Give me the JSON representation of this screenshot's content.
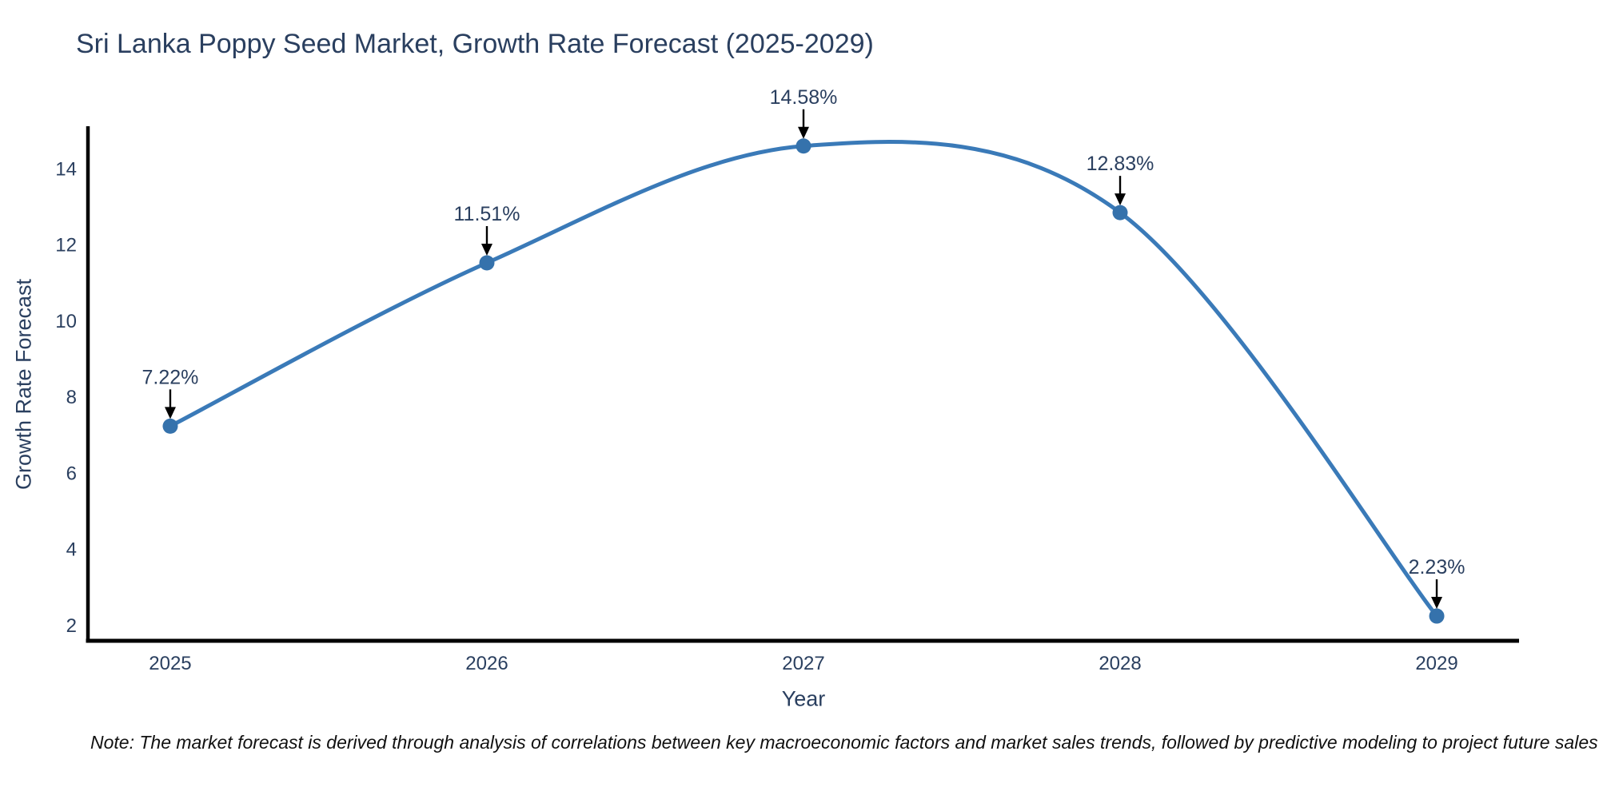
{
  "title": "Sri Lanka Poppy Seed Market, Growth Rate Forecast (2025-2029)",
  "note": "Note: The market forecast is derived through analysis of correlations between key macroeconomic factors and market sales trends, followed by predictive modeling to project future sales",
  "colors": {
    "line": "#3a7ab8",
    "marker": "#3572ac",
    "text": "#2a3f5f",
    "axis": "#000000",
    "arrow": "#000000",
    "background": "#ffffff"
  },
  "chart_data": {
    "type": "line",
    "title": "Sri Lanka Poppy Seed Market, Growth Rate Forecast (2025-2029)",
    "xlabel": "Year",
    "ylabel": "Growth Rate Forecast",
    "x": [
      2025,
      2026,
      2027,
      2028,
      2029
    ],
    "values": [
      7.22,
      11.51,
      14.58,
      12.83,
      2.23
    ],
    "point_labels": [
      "7.22%",
      "11.51%",
      "14.58%",
      "12.83%",
      "2.23%"
    ],
    "x_ticks": [
      "2025",
      "2026",
      "2027",
      "2028",
      "2029"
    ],
    "y_ticks": [
      2,
      4,
      6,
      8,
      10,
      12,
      14
    ],
    "xlim": [
      2024.74,
      2029.26
    ],
    "ylim": [
      1.58,
      15.1
    ],
    "grid": false,
    "legend": "none",
    "line_shape": "spline",
    "annotations": "percentage value above each point with black arrow pointing down to marker"
  }
}
